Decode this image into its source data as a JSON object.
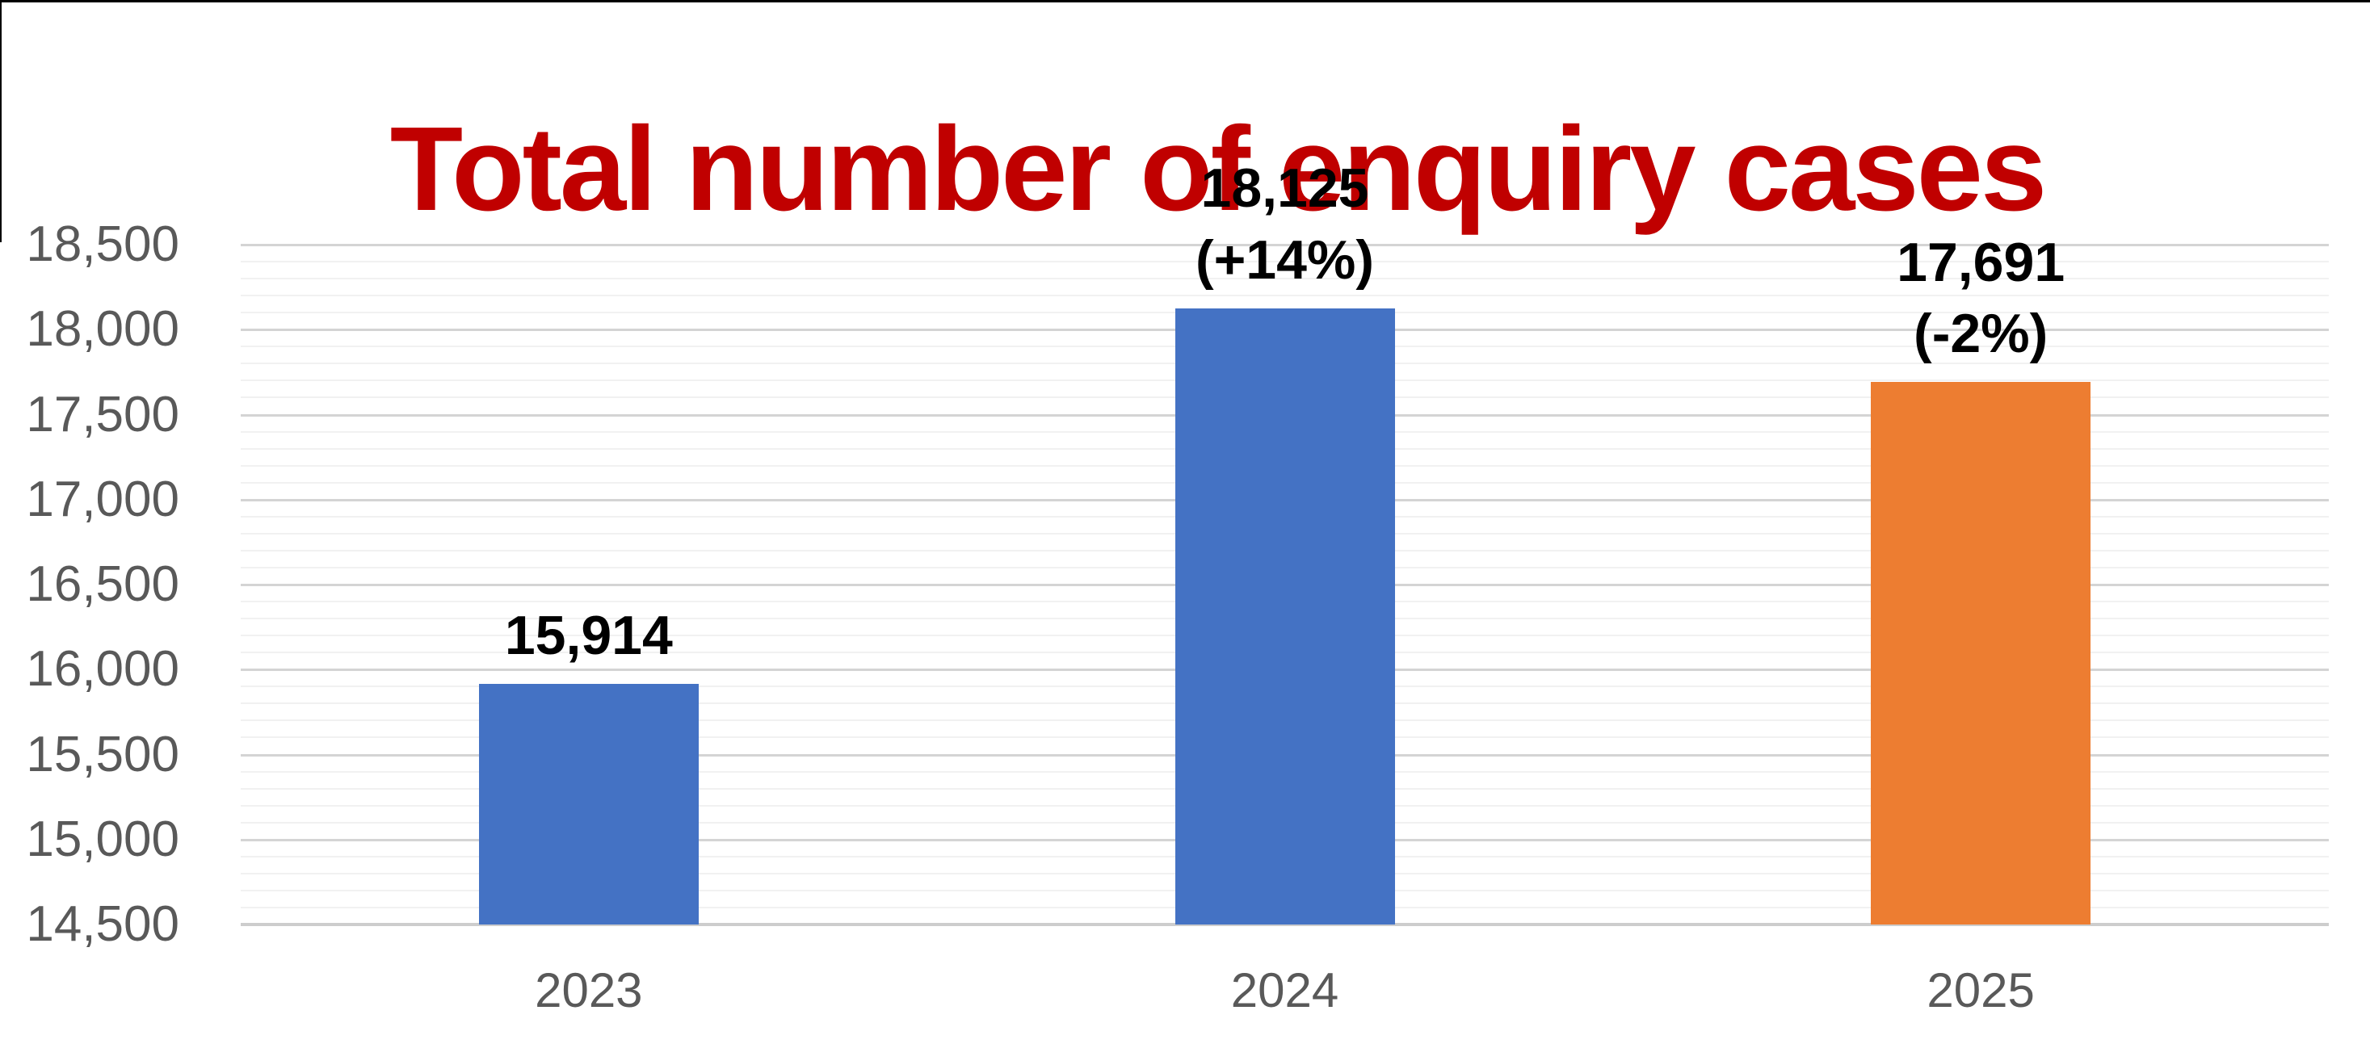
{
  "frame": {
    "edge_color": "#000000"
  },
  "title": {
    "text": "Total number of enquiry cases",
    "color": "#C00000"
  },
  "chart_data": {
    "type": "bar",
    "title": "Total number of enquiry cases",
    "categories": [
      "2023",
      "2024",
      "2025"
    ],
    "values": [
      15914,
      18125,
      17691
    ],
    "data_labels": [
      {
        "value": "15,914",
        "change": ""
      },
      {
        "value": "18,125",
        "change": "(+14%)"
      },
      {
        "value": "17,691",
        "change": "(-2%)"
      }
    ],
    "bar_colors": [
      "#4472C4",
      "#4472C4",
      "#ED7D31"
    ],
    "xlabel": "",
    "ylabel": "",
    "ylim": [
      14500,
      18500
    ],
    "y_major_step": 500,
    "y_minor_step": 100,
    "y_tick_labels": [
      "14,500",
      "15,000",
      "15,500",
      "16,000",
      "16,500",
      "17,000",
      "17,500",
      "18,000",
      "18,500"
    ],
    "grid": "horizontal major and minor gridlines",
    "legend": "none"
  },
  "styles": {
    "title_color": "#C00000",
    "axis_label_color": "#595959",
    "data_label_color": "#000000",
    "major_grid_color": "#D4D4D4",
    "minor_grid_color": "#F1F1F1",
    "axis_line_color": "#CDCDCD",
    "background_color": "#FFFFFF",
    "blue_bar_color": "#4472C4",
    "orange_bar_color": "#ED7D31"
  }
}
